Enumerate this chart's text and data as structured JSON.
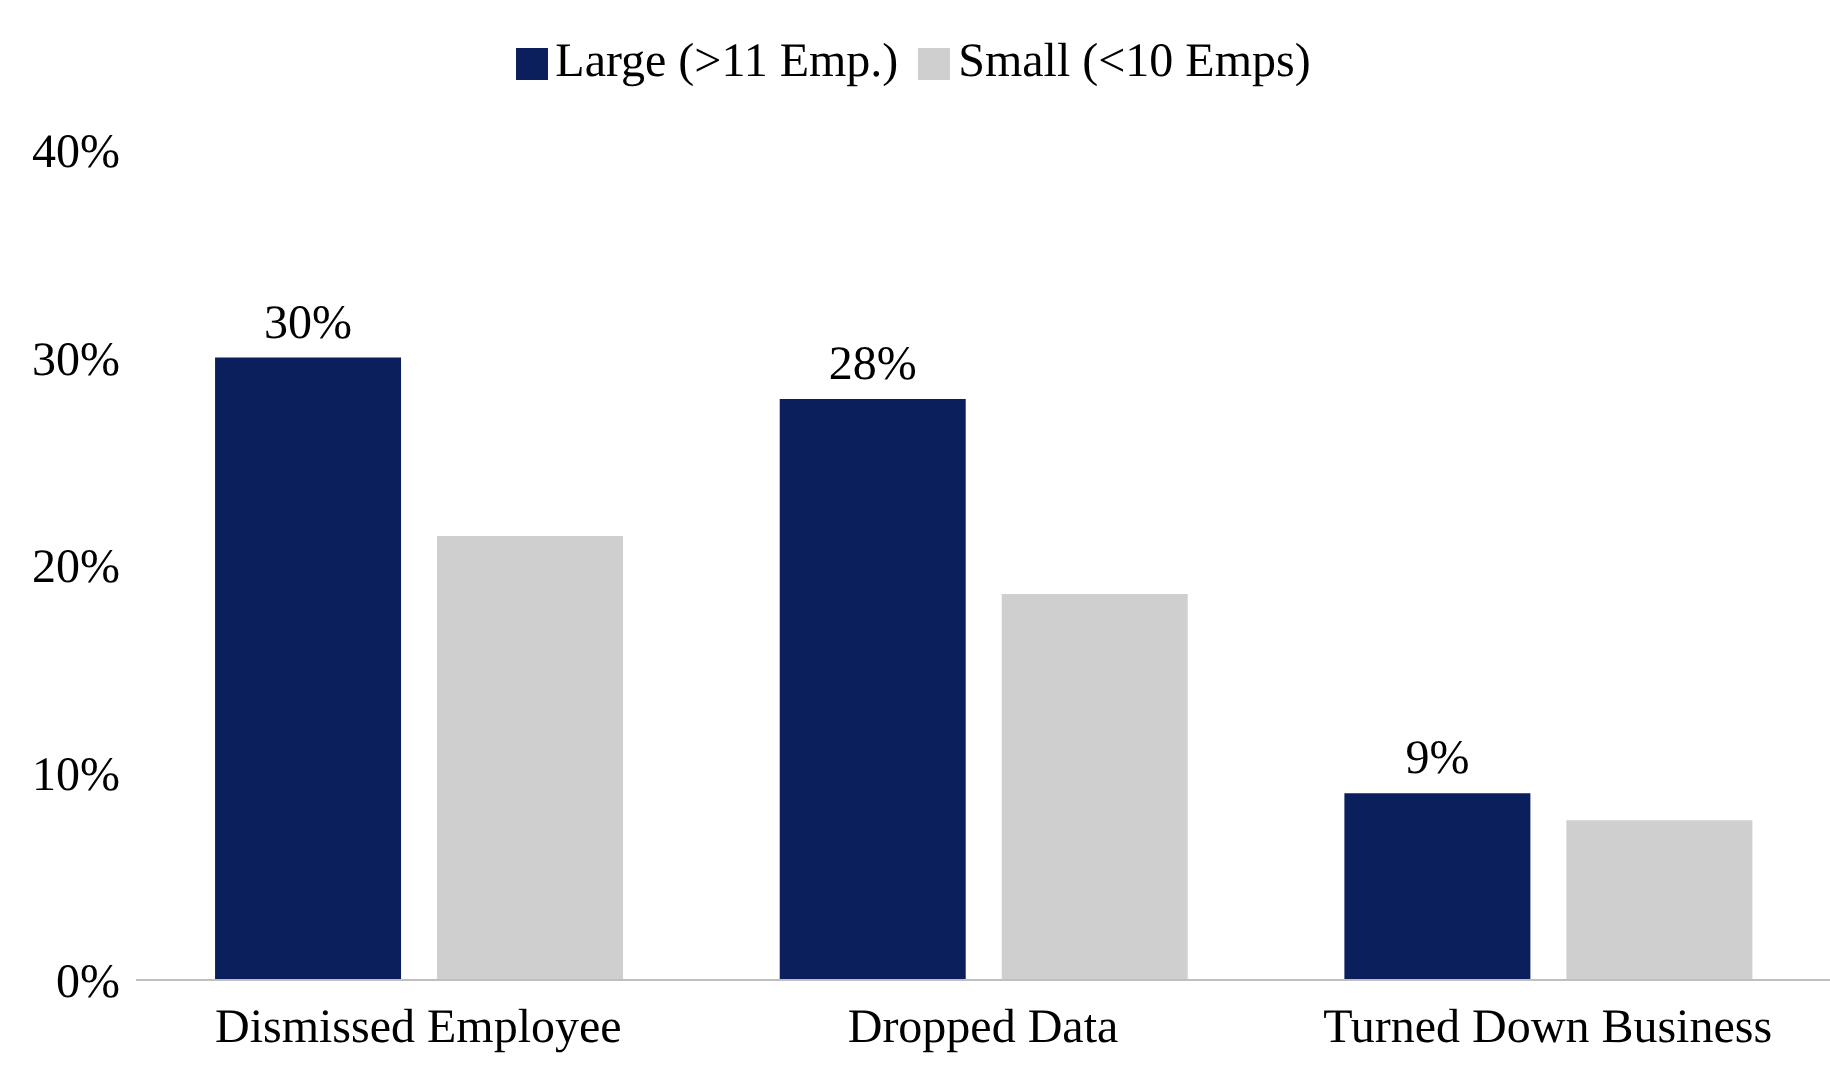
{
  "chart_data": {
    "type": "bar",
    "categories": [
      "Dismissed Employee",
      "Dropped Data",
      "Turned Down Business"
    ],
    "series": [
      {
        "name": "Large (>11 Emp.)",
        "color": "#0a1f5c",
        "values": [
          30,
          28,
          9
        ],
        "value_labels": [
          "30%",
          "28%",
          "9%"
        ]
      },
      {
        "name": "Small (<10 Emps)",
        "color": "#d0cfd0",
        "values": [
          21.4,
          18.6,
          7.7
        ]
      }
    ],
    "ylim": [
      0,
      40
    ],
    "yticks": [
      {
        "value": 0,
        "label": "0%"
      },
      {
        "value": 10,
        "label": "10%"
      },
      {
        "value": 20,
        "label": "20%"
      },
      {
        "value": 30,
        "label": "30%"
      },
      {
        "value": 40,
        "label": "40%"
      }
    ],
    "grid": false,
    "legend": "top"
  }
}
